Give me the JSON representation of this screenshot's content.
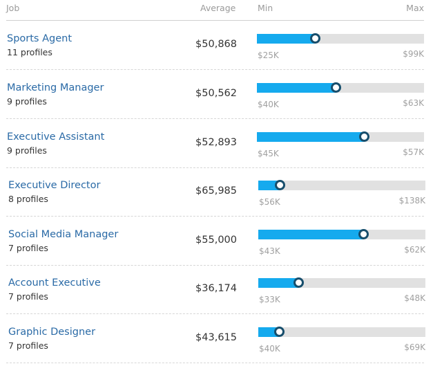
{
  "header": {
    "job": "Job",
    "average": "Average",
    "min": "Min",
    "max": "Max"
  },
  "colors": {
    "link": "#2a6aa6",
    "bar_fill": "#15aaee",
    "track": "#e1e1e1",
    "knob_ring": "#174e6c"
  },
  "rows": [
    {
      "job": "Sports Agent",
      "profiles": "11 profiles",
      "average": "$50,868",
      "min": "$25K",
      "max": "$99K",
      "position": 0.347
    },
    {
      "job": "Marketing Manager",
      "profiles": "9 profiles",
      "average": "$50,562",
      "min": "$40K",
      "max": "$63K",
      "position": 0.471
    },
    {
      "job": "Executive Assistant",
      "profiles": "9 profiles",
      "average": "$52,893",
      "min": "$45K",
      "max": "$57K",
      "position": 0.641
    },
    {
      "job": "Executive Director",
      "profiles": "8 profiles",
      "average": "$65,985",
      "min": "$56K",
      "max": "$138K",
      "position": 0.128
    },
    {
      "job": "Social Media Manager",
      "profiles": "7 profiles",
      "average": "$55,000",
      "min": "$43K",
      "max": "$62K",
      "position": 0.628
    },
    {
      "job": "Account Executive",
      "profiles": "7 profiles",
      "average": "$36,174",
      "min": "$33K",
      "max": "$48K",
      "position": 0.24
    },
    {
      "job": "Graphic Designer",
      "profiles": "7 profiles",
      "average": "$43,615",
      "min": "$40K",
      "max": "$69K",
      "position": 0.124
    }
  ]
}
